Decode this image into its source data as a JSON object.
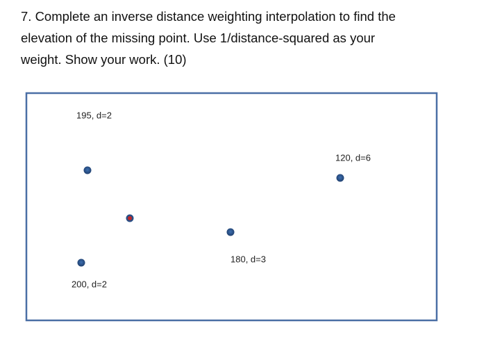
{
  "question": {
    "lines": [
      "7. Complete an inverse distance weighting interpolation to find the",
      "elevation of the missing point. Use 1/distance-squared as your",
      "weight. Show your work. (10)"
    ]
  },
  "diagram": {
    "labels": [
      "195, d=2",
      "120, d=6",
      "180, d=3",
      "200, d=2"
    ]
  }
}
